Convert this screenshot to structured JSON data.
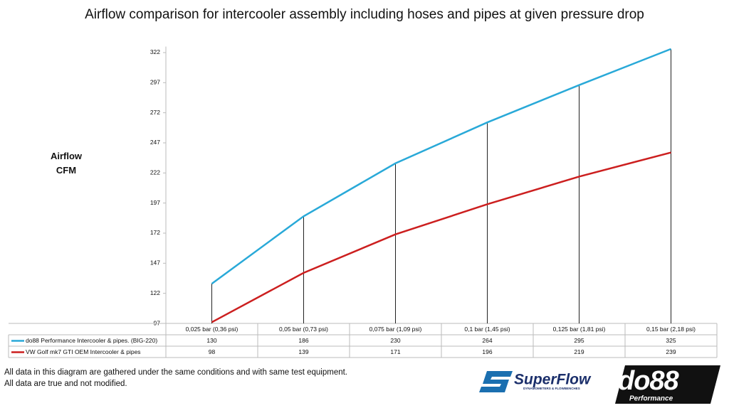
{
  "chart_data": {
    "type": "line",
    "title": "Airflow comparison for intercooler assembly including hoses and pipes at given pressure drop",
    "ylabel": "Airflow CFM",
    "categories": [
      "0,025 bar (0,36 psi)",
      "0,05 bar (0,73 psi)",
      "0,075 bar (1,09 psi)",
      "0,1 bar (1,45 psi)",
      "0,125 bar (1,81 psi)",
      "0,15 bar (2,18 psi)"
    ],
    "series": [
      {
        "name": "do88 Performance Intercooler & pipes. (BIG-220)",
        "color": "#29a9d8",
        "values": [
          130,
          186,
          230,
          264,
          295,
          325
        ]
      },
      {
        "name": "VW Golf mk7 GTI OEM Intercooler & pipes",
        "color": "#cc1f1f",
        "values": [
          98,
          139,
          171,
          196,
          219,
          239
        ]
      }
    ],
    "ylim": [
      97,
      327
    ],
    "yticks": [
      97,
      122,
      147,
      172,
      197,
      222,
      247,
      272,
      297,
      322
    ],
    "grid": false,
    "drop_lines": true,
    "notes": [
      "All data in this diagram are gathered under the same conditions and with same test equipment.",
      "All data are true and not modified."
    ],
    "logos": {
      "superflow": "SuperFlow",
      "superflow_sub": "DYNAMOMETERS & FLOWBENCHES",
      "do88": "do88",
      "do88_sub": "Performance"
    }
  }
}
